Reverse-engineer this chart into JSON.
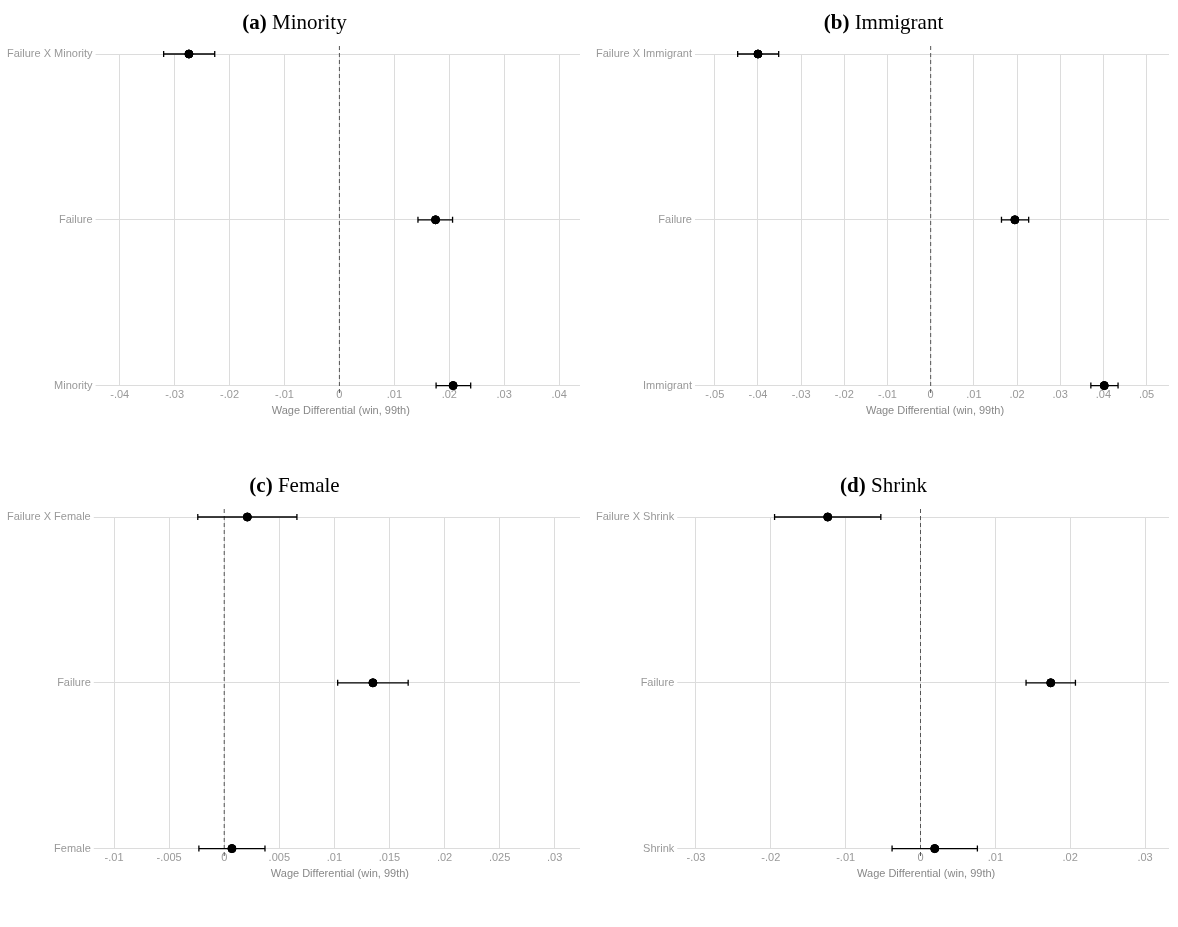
{
  "chart_data": [
    {
      "type": "scatter",
      "title": "(a) Minority",
      "xlabel": "Wage Differential (win, 99th)",
      "orientation": "horizontal",
      "categories": [
        "Failure X Minority",
        "Failure",
        "Minority"
      ],
      "values": [
        -0.0274,
        0.0175,
        0.0207
      ],
      "errors": [
        [
          -0.032,
          -0.0227
        ],
        [
          0.0143,
          0.0206
        ],
        [
          0.0176,
          0.0239
        ]
      ],
      "color": "#000000",
      "marker": "circle",
      "xlim": [
        -0.0433,
        0.0438
      ],
      "xticks": [
        {
          "value": -0.04,
          "label": "-.04"
        },
        {
          "value": -0.03,
          "label": "-.03"
        },
        {
          "value": -0.02,
          "label": "-.02"
        },
        {
          "value": -0.01,
          "label": "-.01"
        },
        {
          "value": 0,
          "label": "0"
        },
        {
          "value": 0.01,
          "label": ".01"
        },
        {
          "value": 0.02,
          "label": ".02"
        },
        {
          "value": 0.03,
          "label": ".03"
        },
        {
          "value": 0.04,
          "label": ".04"
        }
      ],
      "ref_lines": [
        {
          "axis": "x",
          "value": 0,
          "color": "#555555",
          "line_style": "dashed"
        }
      ],
      "grid": true
    },
    {
      "type": "scatter",
      "title": "(b) Immigrant",
      "xlabel": "Wage Differential (win, 99th)",
      "orientation": "horizontal",
      "categories": [
        "Failure X Immigrant",
        "Failure",
        "Immigrant"
      ],
      "values": [
        -0.04,
        0.0195,
        0.0402
      ],
      "errors": [
        [
          -0.0447,
          -0.0352
        ],
        [
          0.0164,
          0.0227
        ],
        [
          0.0371,
          0.0434
        ]
      ],
      "color": "#000000",
      "marker": "circle",
      "xlim": [
        -0.0532,
        0.0552
      ],
      "xticks": [
        {
          "value": -0.05,
          "label": "-.05"
        },
        {
          "value": -0.04,
          "label": "-.04"
        },
        {
          "value": -0.03,
          "label": "-.03"
        },
        {
          "value": -0.02,
          "label": "-.02"
        },
        {
          "value": -0.01,
          "label": "-.01"
        },
        {
          "value": 0,
          "label": "0"
        },
        {
          "value": 0.01,
          "label": ".01"
        },
        {
          "value": 0.02,
          "label": ".02"
        },
        {
          "value": 0.03,
          "label": ".03"
        },
        {
          "value": 0.04,
          "label": ".04"
        },
        {
          "value": 0.05,
          "label": ".05"
        }
      ],
      "ref_lines": [
        {
          "axis": "x",
          "value": 0,
          "color": "#555555",
          "line_style": "dashed"
        }
      ],
      "grid": true
    },
    {
      "type": "scatter",
      "title": "(c) Female",
      "xlabel": "Wage Differential (win, 99th)",
      "orientation": "horizontal",
      "categories": [
        "Failure X Female",
        "Failure",
        "Female"
      ],
      "values": [
        0.0021,
        0.0135,
        0.0007
      ],
      "errors": [
        [
          -0.0024,
          0.0066
        ],
        [
          0.0103,
          0.0167
        ],
        [
          -0.0023,
          0.0037
        ]
      ],
      "color": "#000000",
      "marker": "circle",
      "xlim": [
        -0.0113,
        0.0323
      ],
      "xticks": [
        {
          "value": -0.01,
          "label": "-.01"
        },
        {
          "value": -0.005,
          "label": "-.005"
        },
        {
          "value": 0,
          "label": "0"
        },
        {
          "value": 0.005,
          "label": ".005"
        },
        {
          "value": 0.01,
          "label": ".01"
        },
        {
          "value": 0.015,
          "label": ".015"
        },
        {
          "value": 0.02,
          "label": ".02"
        },
        {
          "value": 0.025,
          "label": ".025"
        },
        {
          "value": 0.03,
          "label": ".03"
        }
      ],
      "ref_lines": [
        {
          "axis": "x",
          "value": 0,
          "color": "#555555",
          "line_style": "dashed"
        }
      ],
      "grid": true
    },
    {
      "type": "scatter",
      "title": "(d) Shrink",
      "xlabel": "Wage Differential (win, 99th)",
      "orientation": "horizontal",
      "categories": [
        "Failure X Shrink",
        "Failure",
        "Shrink"
      ],
      "values": [
        -0.0124,
        0.0174,
        0.0019
      ],
      "errors": [
        [
          -0.0195,
          -0.0053
        ],
        [
          0.0141,
          0.0207
        ],
        [
          -0.0038,
          0.0076
        ]
      ],
      "color": "#000000",
      "marker": "circle",
      "xlim": [
        -0.0317,
        0.0332
      ],
      "xticks": [
        {
          "value": -0.03,
          "label": "-.03"
        },
        {
          "value": -0.02,
          "label": "-.02"
        },
        {
          "value": -0.01,
          "label": "-.01"
        },
        {
          "value": 0,
          "label": "0"
        },
        {
          "value": 0.01,
          "label": ".01"
        },
        {
          "value": 0.02,
          "label": ".02"
        },
        {
          "value": 0.03,
          "label": ".03"
        }
      ],
      "ref_lines": [
        {
          "axis": "x",
          "value": 0,
          "color": "#555555",
          "line_style": "dashed"
        }
      ],
      "grid": true
    }
  ]
}
